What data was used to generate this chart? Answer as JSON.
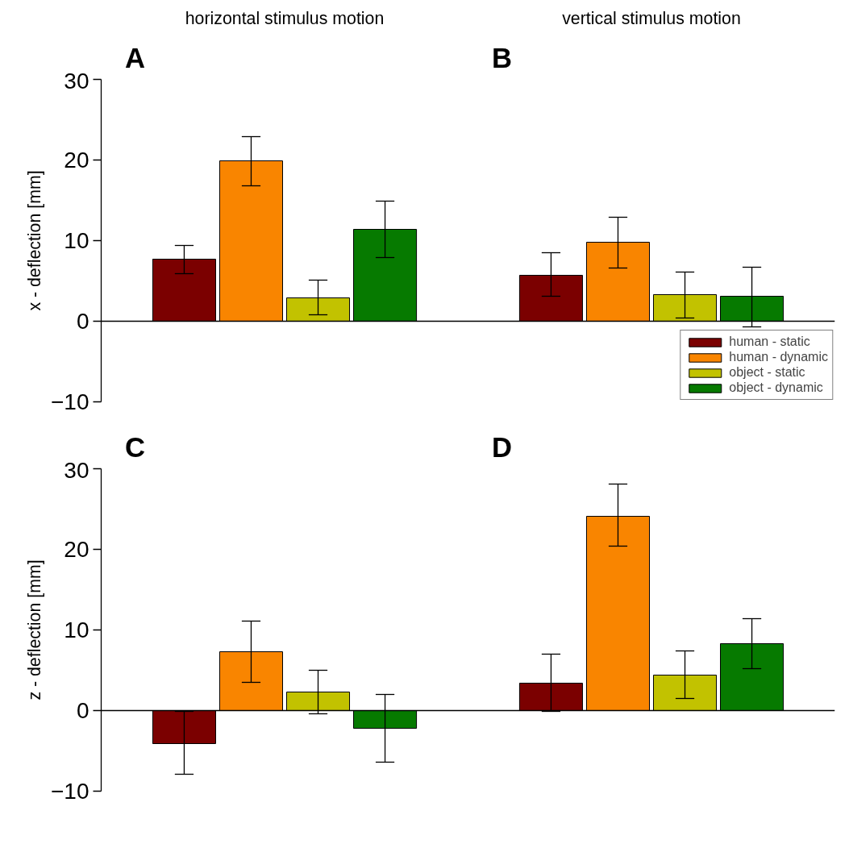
{
  "chart_data": [
    {
      "type": "bar",
      "ylabel": "x - deflection [mm]",
      "categories": [
        null,
        null
      ],
      "ylim": [
        -10,
        30
      ],
      "yticks": [
        -10,
        0,
        10,
        20,
        30
      ],
      "tick_labels": "y",
      "legend": "bottom right",
      "annotations": [
        "A",
        "horizontal stimulus motion",
        "B",
        "vertical stimulus motion"
      ],
      "series": [
        {
          "name": "human - static",
          "color": "#7b0000",
          "values": [
            7.7,
            5.7
          ],
          "errors": [
            [
              5.9,
              9.4
            ],
            [
              3.1,
              8.5
            ]
          ]
        },
        {
          "name": "human - dynamic",
          "color": "#f98500",
          "values": [
            19.9,
            9.8
          ],
          "errors": [
            [
              16.8,
              22.9
            ],
            [
              6.6,
              12.9
            ]
          ]
        },
        {
          "name": "object - static",
          "color": "#c2c200",
          "values": [
            2.9,
            3.3
          ],
          "errors": [
            [
              0.8,
              5.1
            ],
            [
              0.4,
              6.1
            ]
          ]
        },
        {
          "name": "object - dynamic",
          "color": "#067a00",
          "values": [
            11.4,
            3.1
          ],
          "errors": [
            [
              7.9,
              14.9
            ],
            [
              -0.7,
              6.7
            ]
          ]
        }
      ]
    },
    {
      "type": "bar",
      "ylabel": "z - deflection [mm]",
      "categories": [
        null,
        null
      ],
      "ylim": [
        -10,
        30
      ],
      "yticks": [
        -10,
        0,
        10,
        20,
        30
      ],
      "tick_labels": "y",
      "annotations": [
        "C",
        "D"
      ],
      "series": [
        {
          "color": "#7b0000",
          "values": [
            -4.1,
            3.4
          ],
          "errors": [
            [
              -7.9,
              -0.1
            ],
            [
              -0.1,
              7.0
            ]
          ]
        },
        {
          "color": "#f98500",
          "values": [
            7.3,
            24.1
          ],
          "errors": [
            [
              3.5,
              11.1
            ],
            [
              20.4,
              28.1
            ]
          ]
        },
        {
          "color": "#c2c200",
          "values": [
            2.3,
            4.4
          ],
          "errors": [
            [
              -0.4,
              5.0
            ],
            [
              1.5,
              7.4
            ]
          ]
        },
        {
          "color": "#067a00",
          "values": [
            -2.2,
            8.3
          ],
          "errors": [
            [
              -6.4,
              2.0
            ],
            [
              5.2,
              11.4
            ]
          ]
        }
      ]
    }
  ]
}
